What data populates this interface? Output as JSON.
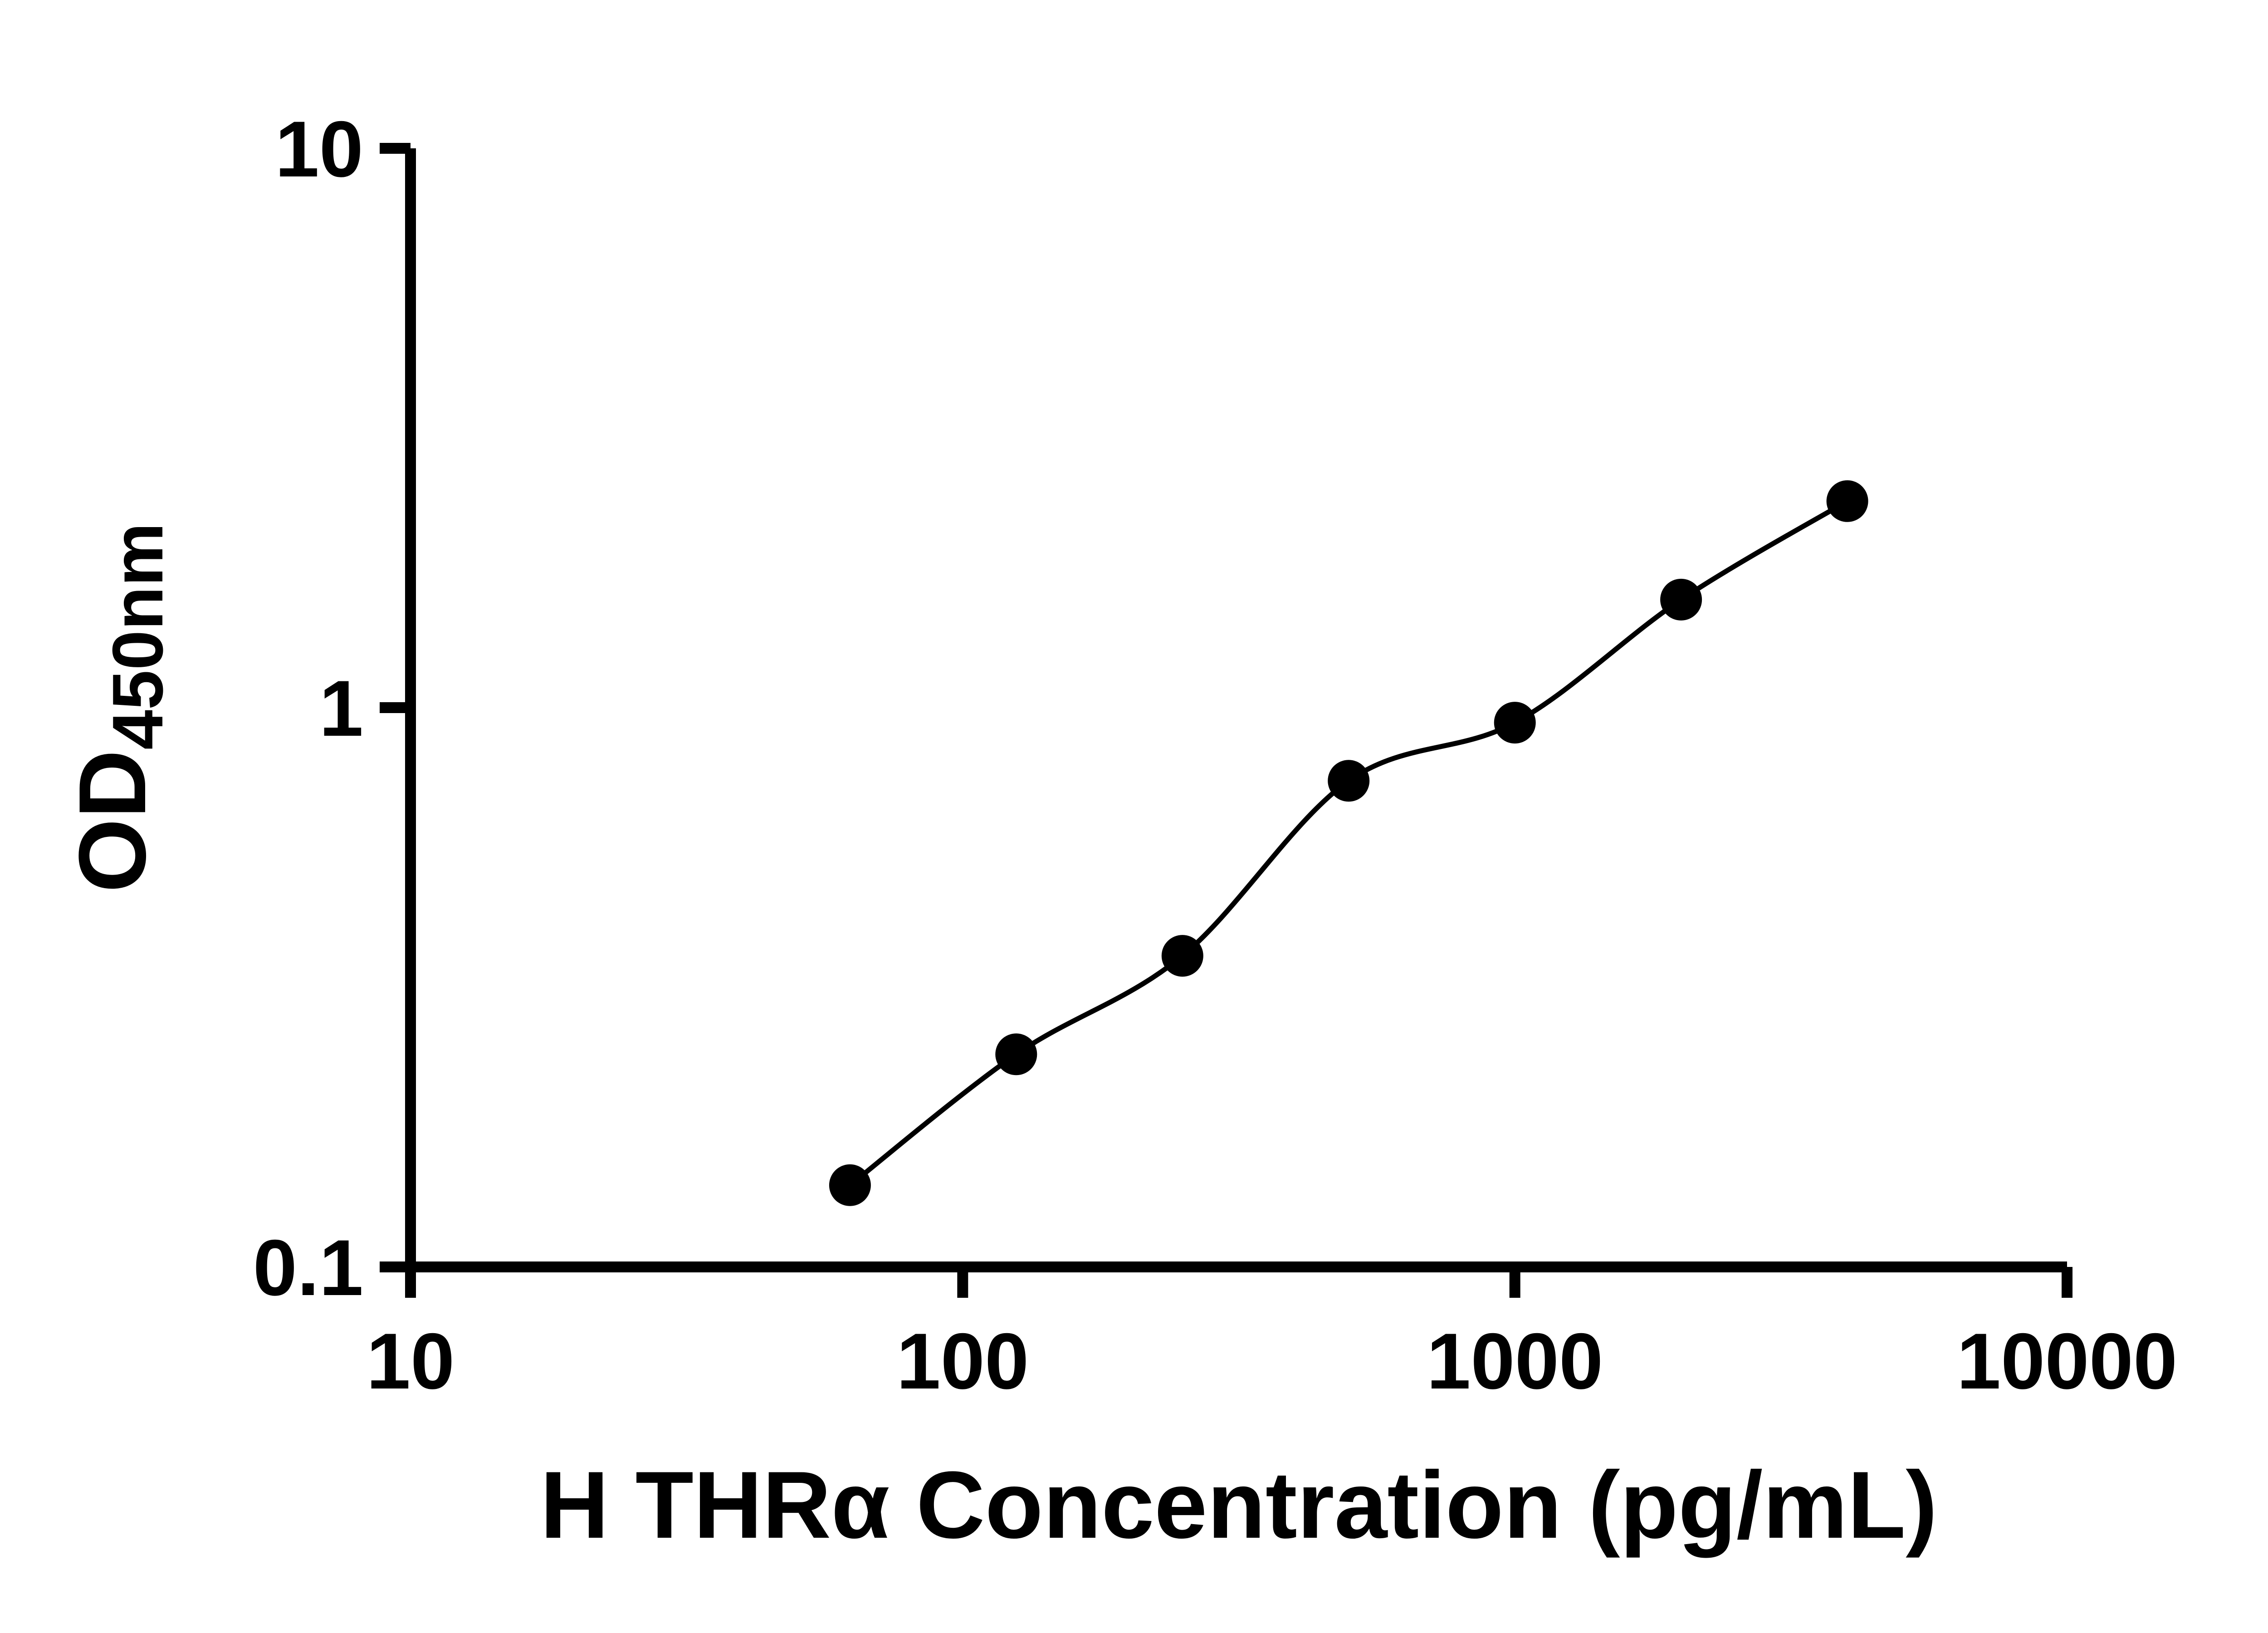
{
  "page": {
    "background_color": "#ffffff"
  },
  "chart_data": {
    "type": "scatter",
    "title": "",
    "xlabel": "H THRα Concentration (pg/mL)",
    "ylabel": "OD",
    "ylabel_subscript": "450nm",
    "xscale": "log",
    "yscale": "log",
    "xlim": [
      10,
      10000
    ],
    "ylim": [
      0.1,
      10
    ],
    "x_ticks": [
      10,
      100,
      1000,
      10000
    ],
    "x_tick_labels": [
      "10",
      "100",
      "1000",
      "10000"
    ],
    "y_ticks": [
      0.1,
      1,
      10
    ],
    "y_tick_labels": [
      "0.1",
      "1",
      "10"
    ],
    "grid": false,
    "legend": false,
    "axis_color": "#000000",
    "series": [
      {
        "marker": "filled-circle",
        "marker_color": "#000000",
        "line_color": "#000000",
        "trendline": "smooth-fit",
        "x": [
          62.5,
          125,
          250,
          500,
          1000,
          2000,
          4000
        ],
        "y": [
          0.14,
          0.24,
          0.36,
          0.74,
          0.94,
          1.56,
          2.34
        ]
      }
    ]
  }
}
